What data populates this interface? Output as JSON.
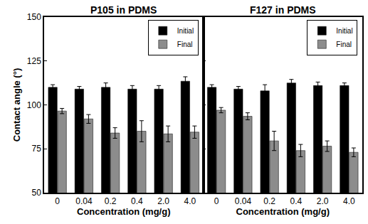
{
  "chart_data": [
    {
      "type": "bar",
      "title": "P105 in PDMS",
      "categories": [
        "0",
        "0.04",
        "0.2",
        "0.4",
        "2.0",
        "4.0"
      ],
      "series": [
        {
          "name": "Initial",
          "color": "#000000",
          "values": [
            110,
            109,
            110,
            109,
            109,
            113.5
          ],
          "errors": [
            1.5,
            1.5,
            2.5,
            2,
            2,
            2.5
          ]
        },
        {
          "name": "Final",
          "color": "#8c8c8c",
          "values": [
            96.5,
            92,
            84,
            85,
            83.5,
            84.5
          ],
          "errors": [
            1.5,
            2.5,
            3,
            6,
            4.5,
            3.5
          ]
        }
      ],
      "x_label": "Concentration (mg/g)",
      "y_label": "Contact angle (°)",
      "ylim": [
        50,
        150
      ],
      "yticks": [
        50,
        75,
        100,
        125,
        150
      ],
      "legend": "upper right"
    },
    {
      "type": "bar",
      "title": "F127 in PDMS",
      "categories": [
        "0",
        "0.04",
        "0.2",
        "0.4",
        "2.0",
        "4.0"
      ],
      "series": [
        {
          "name": "Initial",
          "color": "#000000",
          "values": [
            110,
            109,
            108,
            112.5,
            111,
            111
          ],
          "errors": [
            1.5,
            1.5,
            3.5,
            2,
            2,
            1.5
          ]
        },
        {
          "name": "Final",
          "color": "#8c8c8c",
          "values": [
            97,
            93.5,
            79.5,
            74,
            76.5,
            73
          ],
          "errors": [
            1.5,
            2,
            5.5,
            3.5,
            3,
            2.5
          ]
        }
      ],
      "x_label": "Concentration (mg/g)",
      "ylim": [
        50,
        150
      ],
      "yticks": [
        50,
        75,
        100,
        125,
        150
      ],
      "tick_labels": "x",
      "legend": "upper right"
    }
  ]
}
